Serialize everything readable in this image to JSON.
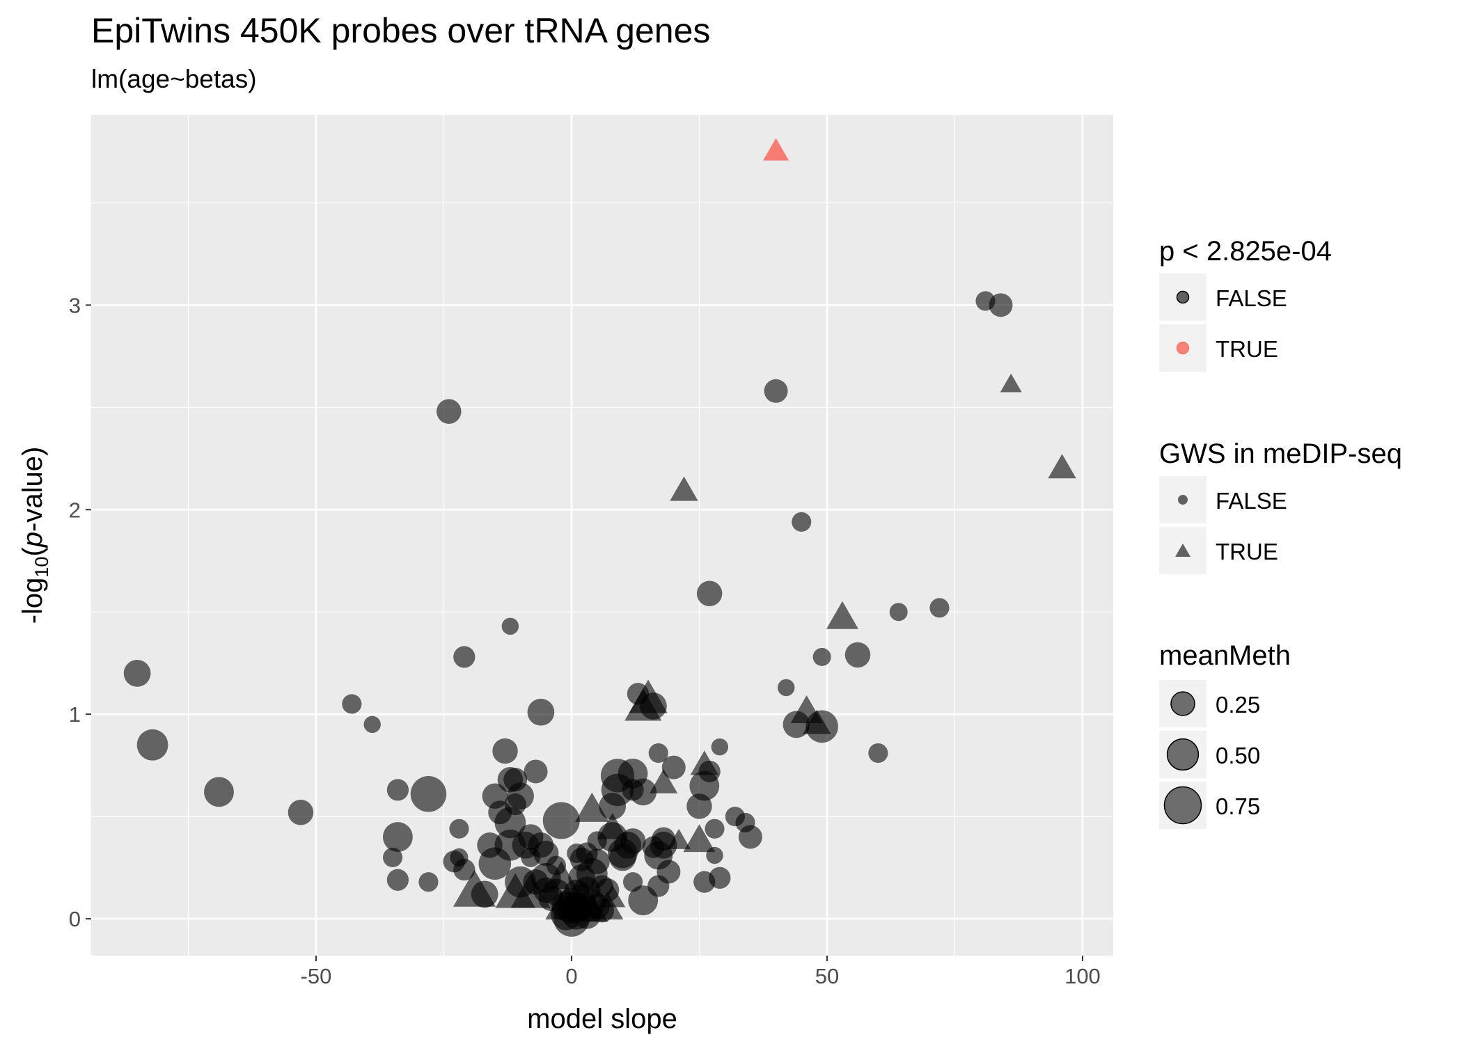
{
  "chart_data": {
    "type": "scatter",
    "title": "EpiTwins 450K probes over tRNA genes",
    "subtitle": "lm(age~betas)",
    "xlabel": "model slope",
    "ylabel_prefix": "-log",
    "ylabel_subscript": "10",
    "ylabel_open": "(",
    "ylabel_italic": "p",
    "ylabel_suffix": "-value)",
    "xlim": [
      -94,
      106
    ],
    "ylim": [
      -0.18,
      3.93
    ],
    "x_ticks": [
      -50,
      0,
      50,
      100
    ],
    "x_tick_labels": [
      "-50",
      "0",
      "50",
      "100"
    ],
    "y_ticks": [
      0,
      1,
      2,
      3
    ],
    "y_tick_labels": [
      "0",
      "1",
      "2",
      "3"
    ],
    "grid": true,
    "colors": {
      "FALSE": "#000000",
      "TRUE": "#f8766d",
      "panel": "#ebebeb",
      "grid": "#ffffff",
      "legend_key": "#f2f2f2"
    },
    "legend_position": "right",
    "legends": [
      {
        "title": "p < 2.825e-04",
        "kind": "color",
        "items": [
          {
            "label": "FALSE",
            "color": "#000000"
          },
          {
            "label": "TRUE",
            "color": "#f8766d"
          }
        ]
      },
      {
        "title": "GWS in meDIP-seq",
        "kind": "shape",
        "items": [
          {
            "label": "FALSE",
            "shape": "circle"
          },
          {
            "label": "TRUE",
            "shape": "triangle"
          }
        ]
      },
      {
        "title": "meanMeth",
        "kind": "size",
        "items": [
          {
            "label": "0.25",
            "value": 0.25
          },
          {
            "label": "0.50",
            "value": 0.5
          },
          {
            "label": "0.75",
            "value": 0.75
          }
        ]
      }
    ],
    "points": [
      {
        "x": -85,
        "y": 1.2,
        "mm": 0.35,
        "shape": "circle",
        "sig": false
      },
      {
        "x": -82,
        "y": 0.85,
        "mm": 0.5,
        "shape": "circle",
        "sig": false
      },
      {
        "x": -69,
        "y": 0.62,
        "mm": 0.45,
        "shape": "circle",
        "sig": false
      },
      {
        "x": -53,
        "y": 0.52,
        "mm": 0.3,
        "shape": "circle",
        "sig": false
      },
      {
        "x": -43,
        "y": 1.05,
        "mm": 0.15,
        "shape": "circle",
        "sig": false
      },
      {
        "x": -39,
        "y": 0.95,
        "mm": 0.1,
        "shape": "circle",
        "sig": false
      },
      {
        "x": -34,
        "y": 0.63,
        "mm": 0.2,
        "shape": "circle",
        "sig": false
      },
      {
        "x": -34,
        "y": 0.4,
        "mm": 0.45,
        "shape": "circle",
        "sig": false
      },
      {
        "x": -35,
        "y": 0.3,
        "mm": 0.15,
        "shape": "circle",
        "sig": false
      },
      {
        "x": -34,
        "y": 0.19,
        "mm": 0.2,
        "shape": "circle",
        "sig": false
      },
      {
        "x": -28,
        "y": 0.61,
        "mm": 0.7,
        "shape": "circle",
        "sig": false
      },
      {
        "x": -28,
        "y": 0.18,
        "mm": 0.15,
        "shape": "circle",
        "sig": false
      },
      {
        "x": -24,
        "y": 2.48,
        "mm": 0.28,
        "shape": "circle",
        "sig": false
      },
      {
        "x": -22,
        "y": 0.44,
        "mm": 0.15,
        "shape": "circle",
        "sig": false
      },
      {
        "x": -22,
        "y": 0.3,
        "mm": 0.12,
        "shape": "circle",
        "sig": false
      },
      {
        "x": -23,
        "y": 0.28,
        "mm": 0.2,
        "shape": "circle",
        "sig": false
      },
      {
        "x": -21,
        "y": 0.24,
        "mm": 0.2,
        "shape": "circle",
        "sig": false
      },
      {
        "x": -21,
        "y": 1.28,
        "mm": 0.2,
        "shape": "circle",
        "sig": false
      },
      {
        "x": -19,
        "y": 0.13,
        "mm": 0.7,
        "shape": "triangle",
        "sig": false
      },
      {
        "x": -17,
        "y": 0.12,
        "mm": 0.35,
        "shape": "circle",
        "sig": false
      },
      {
        "x": -16,
        "y": 0.36,
        "mm": 0.3,
        "shape": "circle",
        "sig": false
      },
      {
        "x": -15,
        "y": 0.27,
        "mm": 0.55,
        "shape": "circle",
        "sig": false
      },
      {
        "x": -15,
        "y": 0.6,
        "mm": 0.3,
        "shape": "circle",
        "sig": false
      },
      {
        "x": -14,
        "y": 0.52,
        "mm": 0.25,
        "shape": "circle",
        "sig": false
      },
      {
        "x": -13,
        "y": 0.82,
        "mm": 0.3,
        "shape": "circle",
        "sig": false
      },
      {
        "x": -12,
        "y": 0.68,
        "mm": 0.3,
        "shape": "circle",
        "sig": false
      },
      {
        "x": -12,
        "y": 0.47,
        "mm": 0.5,
        "shape": "circle",
        "sig": false
      },
      {
        "x": -12,
        "y": 0.36,
        "mm": 0.5,
        "shape": "circle",
        "sig": false
      },
      {
        "x": -12,
        "y": 1.43,
        "mm": 0.1,
        "shape": "circle",
        "sig": false
      },
      {
        "x": -11,
        "y": 0.12,
        "mm": 0.6,
        "shape": "triangle",
        "sig": false
      },
      {
        "x": -11,
        "y": 0.56,
        "mm": 0.2,
        "shape": "circle",
        "sig": false
      },
      {
        "x": -11,
        "y": 0.68,
        "mm": 0.25,
        "shape": "circle",
        "sig": false
      },
      {
        "x": -10,
        "y": 0.6,
        "mm": 0.35,
        "shape": "circle",
        "sig": false
      },
      {
        "x": -10,
        "y": 0.18,
        "mm": 0.5,
        "shape": "circle",
        "sig": false
      },
      {
        "x": -9,
        "y": 0.36,
        "mm": 0.35,
        "shape": "circle",
        "sig": false
      },
      {
        "x": -8,
        "y": 0.12,
        "mm": 0.6,
        "shape": "triangle",
        "sig": false
      },
      {
        "x": -8,
        "y": 0.4,
        "mm": 0.3,
        "shape": "circle",
        "sig": false
      },
      {
        "x": -8,
        "y": 0.3,
        "mm": 0.15,
        "shape": "circle",
        "sig": false
      },
      {
        "x": -7,
        "y": 0.18,
        "mm": 0.3,
        "shape": "circle",
        "sig": false
      },
      {
        "x": -7,
        "y": 0.72,
        "mm": 0.25,
        "shape": "circle",
        "sig": false
      },
      {
        "x": -6,
        "y": 1.01,
        "mm": 0.35,
        "shape": "circle",
        "sig": false
      },
      {
        "x": -6,
        "y": 0.36,
        "mm": 0.3,
        "shape": "circle",
        "sig": false
      },
      {
        "x": -5,
        "y": 0.32,
        "mm": 0.3,
        "shape": "circle",
        "sig": false
      },
      {
        "x": -5,
        "y": 0.2,
        "mm": 0.45,
        "shape": "circle",
        "sig": false
      },
      {
        "x": -5,
        "y": 0.14,
        "mm": 0.3,
        "shape": "circle",
        "sig": false
      },
      {
        "x": -4,
        "y": 0.1,
        "mm": 0.3,
        "shape": "circle",
        "sig": false
      },
      {
        "x": -3,
        "y": 0.26,
        "mm": 0.15,
        "shape": "circle",
        "sig": false
      },
      {
        "x": -3,
        "y": 0.13,
        "mm": 0.35,
        "shape": "circle",
        "sig": false
      },
      {
        "x": -2,
        "y": 0.2,
        "mm": 0.35,
        "shape": "triangle",
        "sig": false
      },
      {
        "x": -2,
        "y": 0.05,
        "mm": 0.35,
        "shape": "triangle",
        "sig": false
      },
      {
        "x": -2,
        "y": 0.48,
        "mm": 0.75,
        "shape": "circle",
        "sig": false
      },
      {
        "x": -1,
        "y": 0.06,
        "mm": 0.45,
        "shape": "circle",
        "sig": false
      },
      {
        "x": -1,
        "y": 0.02,
        "mm": 0.5,
        "shape": "circle",
        "sig": false
      },
      {
        "x": 0,
        "y": 0.0,
        "mm": 0.7,
        "shape": "circle",
        "sig": false
      },
      {
        "x": 0,
        "y": 0.04,
        "mm": 0.35,
        "shape": "circle",
        "sig": false
      },
      {
        "x": 0,
        "y": 0.09,
        "mm": 0.3,
        "shape": "circle",
        "sig": false
      },
      {
        "x": 1,
        "y": 0.02,
        "mm": 0.45,
        "shape": "circle",
        "sig": false
      },
      {
        "x": 1,
        "y": 0.06,
        "mm": 0.4,
        "shape": "circle",
        "sig": false
      },
      {
        "x": 1,
        "y": 0.13,
        "mm": 0.3,
        "shape": "circle",
        "sig": false
      },
      {
        "x": 1,
        "y": 0.32,
        "mm": 0.15,
        "shape": "circle",
        "sig": false
      },
      {
        "x": 2,
        "y": 0.04,
        "mm": 0.35,
        "shape": "triangle",
        "sig": false
      },
      {
        "x": 2,
        "y": 0.2,
        "mm": 0.35,
        "shape": "circle",
        "sig": false
      },
      {
        "x": 2,
        "y": 0.29,
        "mm": 0.25,
        "shape": "circle",
        "sig": false
      },
      {
        "x": 2,
        "y": 0.1,
        "mm": 0.4,
        "shape": "circle",
        "sig": false
      },
      {
        "x": 3,
        "y": 0.14,
        "mm": 0.35,
        "shape": "circle",
        "sig": false
      },
      {
        "x": 3,
        "y": 0.02,
        "mm": 0.4,
        "shape": "circle",
        "sig": false
      },
      {
        "x": 3,
        "y": 0.32,
        "mm": 0.2,
        "shape": "circle",
        "sig": false
      },
      {
        "x": 4,
        "y": 0.08,
        "mm": 0.35,
        "shape": "circle",
        "sig": false
      },
      {
        "x": 4,
        "y": 0.22,
        "mm": 0.5,
        "shape": "circle",
        "sig": false
      },
      {
        "x": 4,
        "y": 0.53,
        "mm": 0.4,
        "shape": "triangle",
        "sig": false
      },
      {
        "x": 4,
        "y": 0.04,
        "mm": 0.35,
        "shape": "triangle",
        "sig": false
      },
      {
        "x": 5,
        "y": 0.06,
        "mm": 0.3,
        "shape": "circle",
        "sig": false
      },
      {
        "x": 5,
        "y": 0.28,
        "mm": 0.3,
        "shape": "circle",
        "sig": false
      },
      {
        "x": 5,
        "y": 0.38,
        "mm": 0.15,
        "shape": "circle",
        "sig": false
      },
      {
        "x": 6,
        "y": 0.16,
        "mm": 0.2,
        "shape": "circle",
        "sig": false
      },
      {
        "x": 6,
        "y": 0.04,
        "mm": 0.25,
        "shape": "circle",
        "sig": false
      },
      {
        "x": 7,
        "y": 0.05,
        "mm": 0.35,
        "shape": "triangle",
        "sig": false
      },
      {
        "x": 7,
        "y": 0.14,
        "mm": 0.25,
        "shape": "circle",
        "sig": false
      },
      {
        "x": 8,
        "y": 0.55,
        "mm": 0.35,
        "shape": "circle",
        "sig": false
      },
      {
        "x": 8,
        "y": 0.4,
        "mm": 0.45,
        "shape": "circle",
        "sig": false
      },
      {
        "x": 8,
        "y": 0.44,
        "mm": 0.3,
        "shape": "triangle",
        "sig": false
      },
      {
        "x": 8,
        "y": 0.1,
        "mm": 0.2,
        "shape": "triangle",
        "sig": false
      },
      {
        "x": 9,
        "y": 0.63,
        "mm": 0.55,
        "shape": "circle",
        "sig": false
      },
      {
        "x": 9,
        "y": 0.7,
        "mm": 0.6,
        "shape": "circle",
        "sig": false
      },
      {
        "x": 10,
        "y": 0.32,
        "mm": 0.45,
        "shape": "circle",
        "sig": false
      },
      {
        "x": 10,
        "y": 0.3,
        "mm": 0.35,
        "shape": "circle",
        "sig": false
      },
      {
        "x": 11,
        "y": 0.36,
        "mm": 0.35,
        "shape": "circle",
        "sig": false
      },
      {
        "x": 12,
        "y": 0.71,
        "mm": 0.45,
        "shape": "circle",
        "sig": false
      },
      {
        "x": 12,
        "y": 0.63,
        "mm": 0.2,
        "shape": "circle",
        "sig": false
      },
      {
        "x": 12,
        "y": 0.18,
        "mm": 0.15,
        "shape": "circle",
        "sig": false
      },
      {
        "x": 12,
        "y": 0.38,
        "mm": 0.3,
        "shape": "circle",
        "sig": false
      },
      {
        "x": 13,
        "y": 1.1,
        "mm": 0.2,
        "shape": "circle",
        "sig": false
      },
      {
        "x": 14,
        "y": 0.09,
        "mm": 0.45,
        "shape": "circle",
        "sig": false
      },
      {
        "x": 14,
        "y": 0.62,
        "mm": 0.35,
        "shape": "circle",
        "sig": false
      },
      {
        "x": 14,
        "y": 1.03,
        "mm": 0.5,
        "shape": "triangle",
        "sig": false
      },
      {
        "x": 15,
        "y": 1.07,
        "mm": 0.55,
        "shape": "triangle",
        "sig": false
      },
      {
        "x": 16,
        "y": 1.04,
        "mm": 0.35,
        "shape": "circle",
        "sig": false
      },
      {
        "x": 16,
        "y": 0.35,
        "mm": 0.2,
        "shape": "circle",
        "sig": false
      },
      {
        "x": 17,
        "y": 0.31,
        "mm": 0.4,
        "shape": "circle",
        "sig": false
      },
      {
        "x": 17,
        "y": 0.81,
        "mm": 0.15,
        "shape": "circle",
        "sig": false
      },
      {
        "x": 17,
        "y": 0.16,
        "mm": 0.2,
        "shape": "circle",
        "sig": false
      },
      {
        "x": 18,
        "y": 0.36,
        "mm": 0.35,
        "shape": "circle",
        "sig": false
      },
      {
        "x": 18,
        "y": 0.39,
        "mm": 0.25,
        "shape": "circle",
        "sig": false
      },
      {
        "x": 18,
        "y": 0.66,
        "mm": 0.25,
        "shape": "triangle",
        "sig": false
      },
      {
        "x": 19,
        "y": 0.23,
        "mm": 0.25,
        "shape": "circle",
        "sig": false
      },
      {
        "x": 20,
        "y": 0.74,
        "mm": 0.25,
        "shape": "circle",
        "sig": false
      },
      {
        "x": 21,
        "y": 0.38,
        "mm": 0.15,
        "shape": "triangle",
        "sig": false
      },
      {
        "x": 22,
        "y": 2.09,
        "mm": 0.25,
        "shape": "triangle",
        "sig": false
      },
      {
        "x": 25,
        "y": 0.38,
        "mm": 0.35,
        "shape": "triangle",
        "sig": false
      },
      {
        "x": 25,
        "y": 0.55,
        "mm": 0.3,
        "shape": "circle",
        "sig": false
      },
      {
        "x": 26,
        "y": 0.65,
        "mm": 0.45,
        "shape": "circle",
        "sig": false
      },
      {
        "x": 26,
        "y": 0.75,
        "mm": 0.25,
        "shape": "triangle",
        "sig": false
      },
      {
        "x": 26,
        "y": 0.18,
        "mm": 0.2,
        "shape": "circle",
        "sig": false
      },
      {
        "x": 27,
        "y": 1.59,
        "mm": 0.3,
        "shape": "circle",
        "sig": false
      },
      {
        "x": 27,
        "y": 0.72,
        "mm": 0.2,
        "shape": "circle",
        "sig": false
      },
      {
        "x": 28,
        "y": 0.44,
        "mm": 0.15,
        "shape": "circle",
        "sig": false
      },
      {
        "x": 28,
        "y": 0.31,
        "mm": 0.1,
        "shape": "circle",
        "sig": false
      },
      {
        "x": 29,
        "y": 0.84,
        "mm": 0.1,
        "shape": "circle",
        "sig": false
      },
      {
        "x": 29,
        "y": 0.2,
        "mm": 0.2,
        "shape": "circle",
        "sig": false
      },
      {
        "x": 32,
        "y": 0.5,
        "mm": 0.15,
        "shape": "circle",
        "sig": false
      },
      {
        "x": 34,
        "y": 0.47,
        "mm": 0.15,
        "shape": "circle",
        "sig": false
      },
      {
        "x": 35,
        "y": 0.4,
        "mm": 0.25,
        "shape": "circle",
        "sig": false
      },
      {
        "x": 40,
        "y": 3.75,
        "mm": 0.2,
        "shape": "triangle",
        "sig": true
      },
      {
        "x": 40,
        "y": 2.58,
        "mm": 0.25,
        "shape": "circle",
        "sig": false
      },
      {
        "x": 42,
        "y": 1.13,
        "mm": 0.1,
        "shape": "circle",
        "sig": false
      },
      {
        "x": 44,
        "y": 0.95,
        "mm": 0.35,
        "shape": "circle",
        "sig": false
      },
      {
        "x": 45,
        "y": 1.94,
        "mm": 0.15,
        "shape": "circle",
        "sig": false
      },
      {
        "x": 46,
        "y": 1.01,
        "mm": 0.35,
        "shape": "triangle",
        "sig": false
      },
      {
        "x": 48,
        "y": 0.95,
        "mm": 0.25,
        "shape": "triangle",
        "sig": false
      },
      {
        "x": 49,
        "y": 0.94,
        "mm": 0.55,
        "shape": "circle",
        "sig": false
      },
      {
        "x": 49,
        "y": 1.28,
        "mm": 0.12,
        "shape": "circle",
        "sig": false
      },
      {
        "x": 53,
        "y": 1.47,
        "mm": 0.35,
        "shape": "triangle",
        "sig": false
      },
      {
        "x": 56,
        "y": 1.29,
        "mm": 0.3,
        "shape": "circle",
        "sig": false
      },
      {
        "x": 60,
        "y": 0.81,
        "mm": 0.15,
        "shape": "circle",
        "sig": false
      },
      {
        "x": 64,
        "y": 1.5,
        "mm": 0.12,
        "shape": "circle",
        "sig": false
      },
      {
        "x": 72,
        "y": 1.52,
        "mm": 0.15,
        "shape": "circle",
        "sig": false
      },
      {
        "x": 81,
        "y": 3.02,
        "mm": 0.15,
        "shape": "circle",
        "sig": false
      },
      {
        "x": 84,
        "y": 3.0,
        "mm": 0.25,
        "shape": "circle",
        "sig": false
      },
      {
        "x": 86,
        "y": 2.61,
        "mm": 0.12,
        "shape": "triangle",
        "sig": false
      },
      {
        "x": 96,
        "y": 2.2,
        "mm": 0.25,
        "shape": "triangle",
        "sig": false
      }
    ]
  }
}
